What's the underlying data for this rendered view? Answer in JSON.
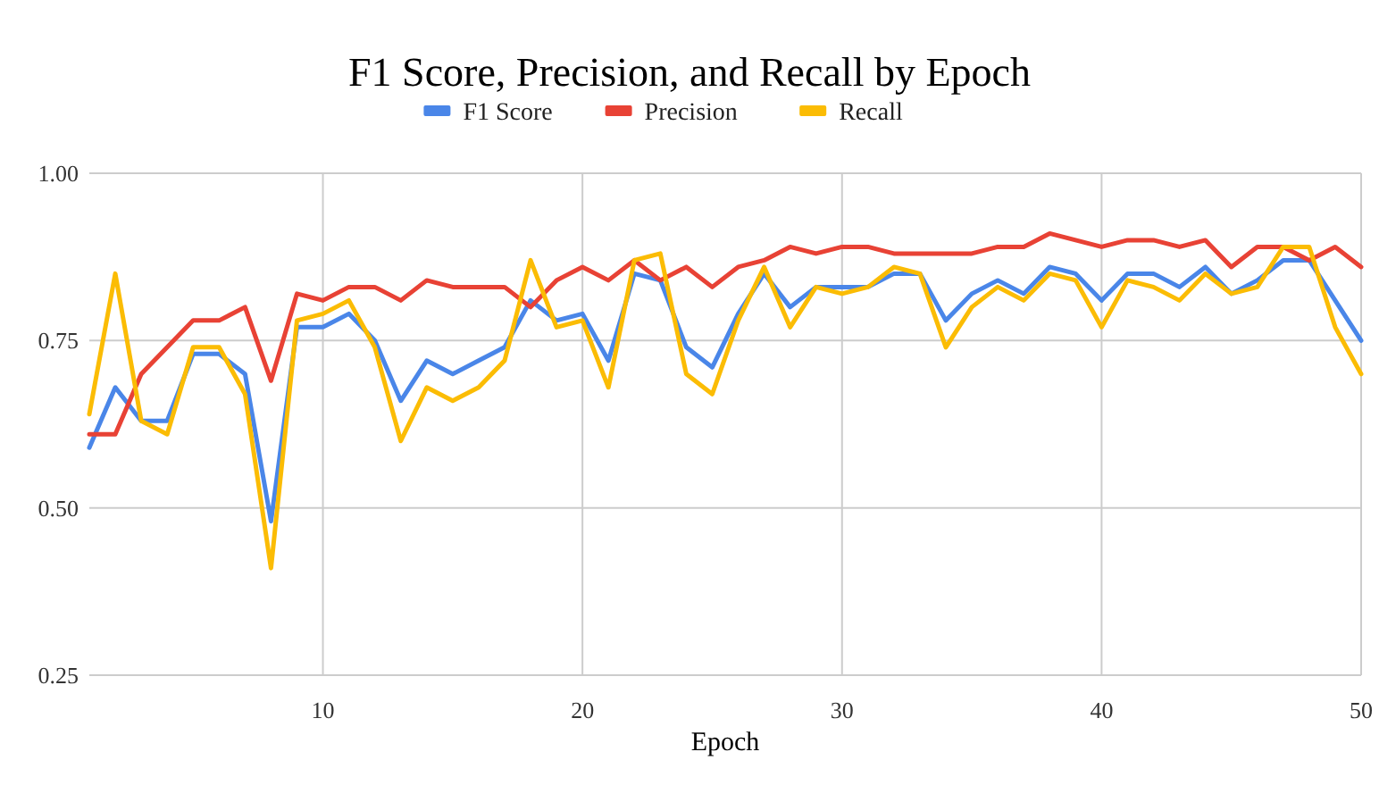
{
  "chart_data": {
    "type": "line",
    "title": "F1 Score, Precision, and Recall by Epoch",
    "xlabel": "Epoch",
    "x": [
      1,
      2,
      3,
      4,
      5,
      6,
      7,
      8,
      9,
      10,
      11,
      12,
      13,
      14,
      15,
      16,
      17,
      18,
      19,
      20,
      21,
      22,
      23,
      24,
      25,
      26,
      27,
      28,
      29,
      30,
      31,
      32,
      33,
      34,
      35,
      36,
      37,
      38,
      39,
      40,
      41,
      42,
      43,
      44,
      45,
      46,
      47,
      48,
      49,
      50
    ],
    "series": [
      {
        "name": "F1 Score",
        "color": "#4a86e8",
        "values": [
          0.59,
          0.68,
          0.63,
          0.63,
          0.73,
          0.73,
          0.7,
          0.48,
          0.77,
          0.77,
          0.79,
          0.75,
          0.66,
          0.72,
          0.7,
          0.72,
          0.74,
          0.81,
          0.78,
          0.79,
          0.72,
          0.85,
          0.84,
          0.74,
          0.71,
          0.79,
          0.85,
          0.8,
          0.83,
          0.83,
          0.83,
          0.85,
          0.85,
          0.78,
          0.82,
          0.84,
          0.82,
          0.86,
          0.85,
          0.81,
          0.85,
          0.85,
          0.83,
          0.86,
          0.82,
          0.84,
          0.87,
          0.87,
          0.81,
          0.75
        ]
      },
      {
        "name": "Precision",
        "color": "#e84235",
        "values": [
          0.61,
          0.61,
          0.7,
          0.74,
          0.78,
          0.78,
          0.8,
          0.69,
          0.82,
          0.81,
          0.83,
          0.83,
          0.81,
          0.84,
          0.83,
          0.83,
          0.83,
          0.8,
          0.84,
          0.86,
          0.84,
          0.87,
          0.84,
          0.86,
          0.83,
          0.86,
          0.87,
          0.89,
          0.88,
          0.89,
          0.89,
          0.88,
          0.88,
          0.88,
          0.88,
          0.89,
          0.89,
          0.91,
          0.9,
          0.89,
          0.9,
          0.9,
          0.89,
          0.9,
          0.86,
          0.89,
          0.89,
          0.87,
          0.89,
          0.86
        ]
      },
      {
        "name": "Recall",
        "color": "#fbbc04",
        "values": [
          0.64,
          0.85,
          0.63,
          0.61,
          0.74,
          0.74,
          0.67,
          0.41,
          0.78,
          0.79,
          0.81,
          0.74,
          0.6,
          0.68,
          0.66,
          0.68,
          0.72,
          0.87,
          0.77,
          0.78,
          0.68,
          0.87,
          0.88,
          0.7,
          0.67,
          0.78,
          0.86,
          0.77,
          0.83,
          0.82,
          0.83,
          0.86,
          0.85,
          0.74,
          0.8,
          0.83,
          0.81,
          0.85,
          0.84,
          0.77,
          0.84,
          0.83,
          0.81,
          0.85,
          0.82,
          0.83,
          0.89,
          0.89,
          0.77,
          0.7
        ]
      }
    ],
    "xlim": [
      1,
      50
    ],
    "xticks": [
      10,
      20,
      30,
      40,
      50
    ],
    "ylim": [
      0.25,
      1
    ],
    "yticks": [
      0.25,
      {
        "value": 0.5,
        "label": "0.50"
      },
      0.75,
      {
        "value": 1,
        "label": "1.00"
      }
    ],
    "grid": true,
    "legend": "top",
    "marker": "none",
    "line_style": "solid"
  }
}
